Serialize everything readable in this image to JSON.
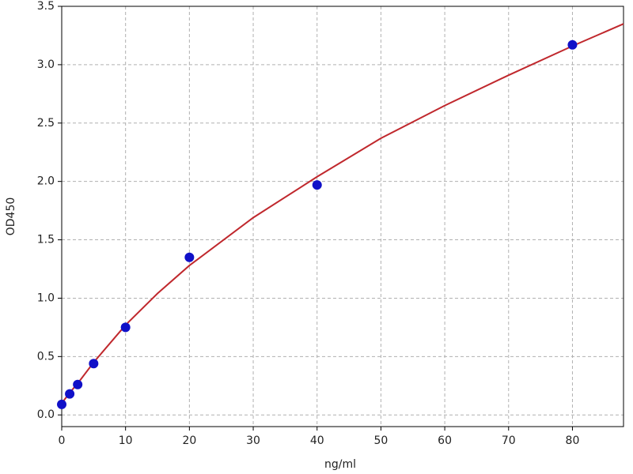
{
  "chart_data": {
    "type": "scatter",
    "x_label": "ng/ml",
    "y_label": "OD450",
    "xlim": [
      0,
      88
    ],
    "ylim": [
      -0.1,
      3.5
    ],
    "xticks": [
      0,
      10,
      20,
      30,
      40,
      50,
      60,
      70,
      80
    ],
    "yticks": [
      {
        "value": 0,
        "label": "0.0"
      },
      0.5,
      {
        "value": 1,
        "label": "1.0"
      },
      1.5,
      {
        "value": 2,
        "label": "2.0"
      },
      2.5,
      {
        "value": 3,
        "label": "3.0"
      },
      3.5
    ],
    "grid": true,
    "series": [
      {
        "type": "line",
        "color": "#c0282d",
        "x": [
          0,
          1.25,
          2.5,
          5,
          10,
          15,
          20,
          30,
          40,
          50,
          60,
          70,
          80,
          88
        ],
        "values": [
          0.1,
          0.19,
          0.27,
          0.45,
          0.77,
          1.04,
          1.28,
          1.69,
          2.04,
          2.37,
          2.65,
          2.91,
          3.16,
          3.35
        ]
      },
      {
        "type": "scatter",
        "color": "#1010c8",
        "x": [
          0,
          1.25,
          2.5,
          5,
          10,
          20,
          40,
          80
        ],
        "values": [
          0.09,
          0.18,
          0.26,
          0.44,
          0.75,
          1.35,
          1.97,
          3.17
        ]
      }
    ]
  }
}
